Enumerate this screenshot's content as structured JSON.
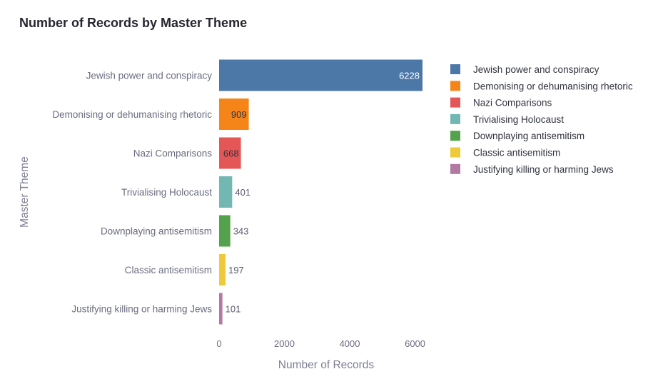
{
  "chart_data": {
    "type": "bar",
    "orientation": "horizontal",
    "title": "Number of Records by Master Theme",
    "xlabel": "Number of Records",
    "ylabel": "Master Theme",
    "xlim": [
      0,
      6228
    ],
    "xticks": [
      0,
      2000,
      4000,
      6000
    ],
    "grid": false,
    "legend": "right",
    "categories": [
      "Jewish power and conspiracy",
      "Demonising or dehumanising rhetoric",
      "Nazi Comparisons",
      "Trivialising Holocaust",
      "Downplaying antisemitism",
      "Classic antisemitism",
      "Justifying killing or harming Jews"
    ],
    "values": [
      6228,
      909,
      668,
      401,
      343,
      197,
      101
    ],
    "colors": [
      "#4c78a8",
      "#f58518",
      "#e45756",
      "#72b7b2",
      "#54a24b",
      "#eeca3b",
      "#b279a2"
    ]
  }
}
